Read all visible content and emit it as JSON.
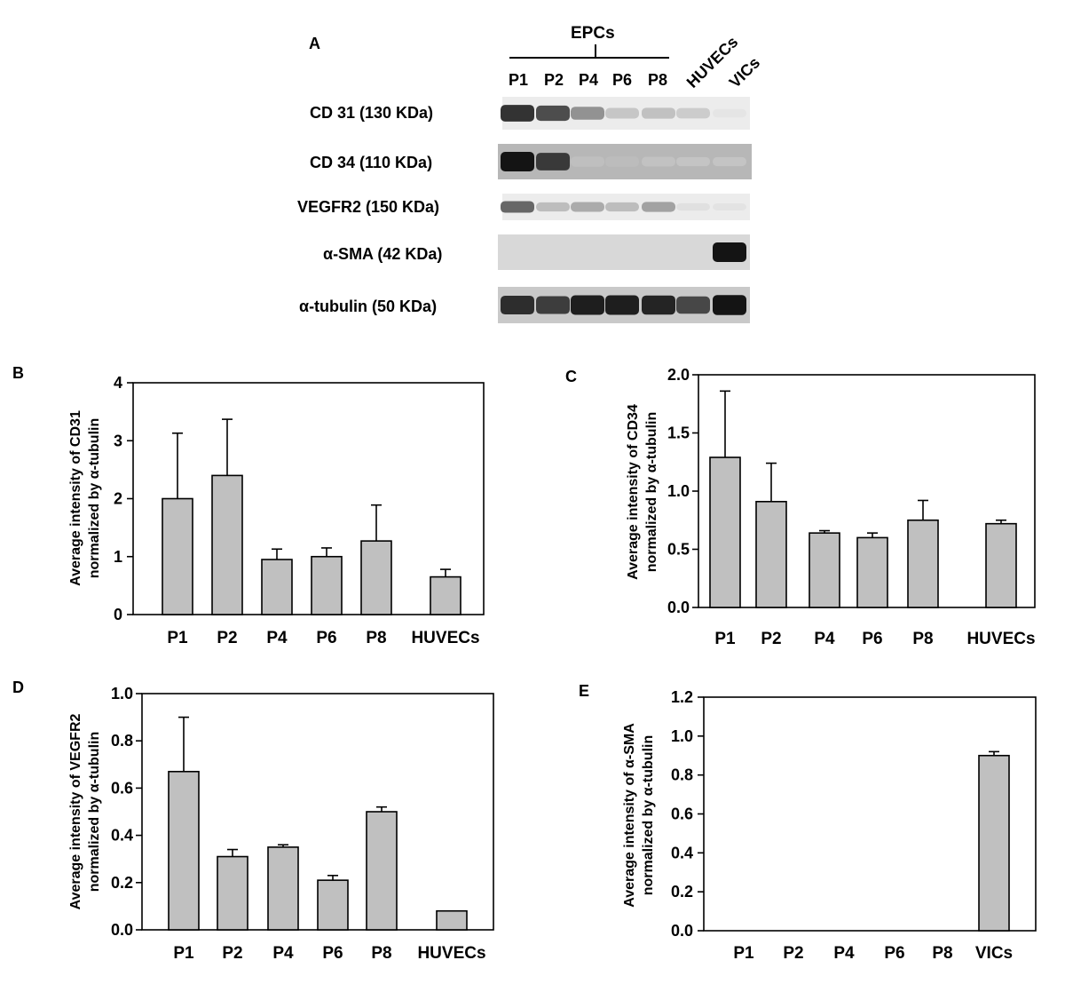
{
  "panel_a": {
    "letter": "A",
    "group_label": "EPCs",
    "lanes": [
      "P1",
      "P2",
      "P4",
      "P6",
      "P8",
      "HUVECs",
      "VICs"
    ],
    "blots": [
      {
        "label": "CD 31 (130 KDa)",
        "background": "#ececec",
        "intensities": [
          0.85,
          0.72,
          0.48,
          0.25,
          0.28,
          0.22,
          0.03
        ]
      },
      {
        "label": "CD 34 (110 KDa)",
        "background": "#b7b7b7",
        "intensities": [
          1.0,
          0.82,
          0.12,
          0.15,
          0.08,
          0.03,
          0.02
        ]
      },
      {
        "label": "VEGFR2 (150 KDa)",
        "background": "#ececec",
        "intensities": [
          0.62,
          0.3,
          0.38,
          0.3,
          0.42,
          0.08,
          0.05
        ]
      },
      {
        "label": "α-SMA (42 KDa)",
        "background": "#d8d8d8",
        "intensities": [
          0.0,
          0.0,
          0.0,
          0.0,
          0.0,
          0.0,
          1.0
        ]
      },
      {
        "label": "α-tubulin (50 KDa)",
        "background": "#c9c9c9",
        "intensities": [
          0.88,
          0.8,
          0.95,
          0.95,
          0.92,
          0.75,
          1.0
        ]
      }
    ]
  },
  "chart_data": [
    {
      "panel": "B",
      "type": "bar",
      "categories": [
        "P1",
        "P2",
        "P4",
        "P6",
        "P8",
        "HUVECs"
      ],
      "values": [
        2.0,
        2.4,
        0.95,
        1.0,
        1.27,
        0.65
      ],
      "errors": [
        1.13,
        0.97,
        0.18,
        0.15,
        0.62,
        0.13
      ],
      "ylabel": [
        "Average intensity of CD31",
        "normalized by α-tubulin"
      ],
      "ylim": [
        0,
        4
      ],
      "yticks": [
        "0",
        "1",
        "2",
        "3",
        "4"
      ],
      "bar_color": "#c0c0c0"
    },
    {
      "panel": "C",
      "type": "bar",
      "categories": [
        "P1",
        "P2",
        "P4",
        "P6",
        "P8",
        "HUVECs"
      ],
      "values": [
        1.29,
        0.91,
        0.64,
        0.6,
        0.75,
        0.72
      ],
      "errors": [
        0.57,
        0.33,
        0.02,
        0.04,
        0.17,
        0.03
      ],
      "ylabel": [
        "Average intensity of CD34",
        "normalized by α-tubulin"
      ],
      "ylim": [
        0,
        2
      ],
      "yticks": [
        "0.0",
        "0.5",
        "1.0",
        "1.5",
        "2.0"
      ],
      "bar_color": "#c0c0c0"
    },
    {
      "panel": "D",
      "type": "bar",
      "categories": [
        "P1",
        "P2",
        "P4",
        "P6",
        "P8",
        "HUVECs"
      ],
      "values": [
        0.67,
        0.31,
        0.35,
        0.21,
        0.5,
        0.08
      ],
      "errors": [
        0.23,
        0.03,
        0.01,
        0.02,
        0.02,
        0.0
      ],
      "ylabel": [
        "Average intensity of VEGFR2",
        "normalized by α-tubulin"
      ],
      "ylim": [
        0,
        1
      ],
      "yticks": [
        "0.0",
        "0.2",
        "0.4",
        "0.6",
        "0.8",
        "1.0"
      ],
      "bar_color": "#c0c0c0"
    },
    {
      "panel": "E",
      "type": "bar",
      "categories": [
        "P1",
        "P2",
        "P4",
        "P6",
        "P8",
        "VICs"
      ],
      "values": [
        0,
        0,
        0,
        0,
        0,
        0.9
      ],
      "errors": [
        0,
        0,
        0,
        0,
        0,
        0.02
      ],
      "ylabel": [
        "Average intensity of α-SMA",
        "normalized by α-tubulin"
      ],
      "ylim": [
        0,
        1.2
      ],
      "yticks": [
        "0.0",
        "0.2",
        "0.4",
        "0.6",
        "0.8",
        "1.0",
        "1.2"
      ],
      "bar_color": "#c0c0c0"
    }
  ]
}
